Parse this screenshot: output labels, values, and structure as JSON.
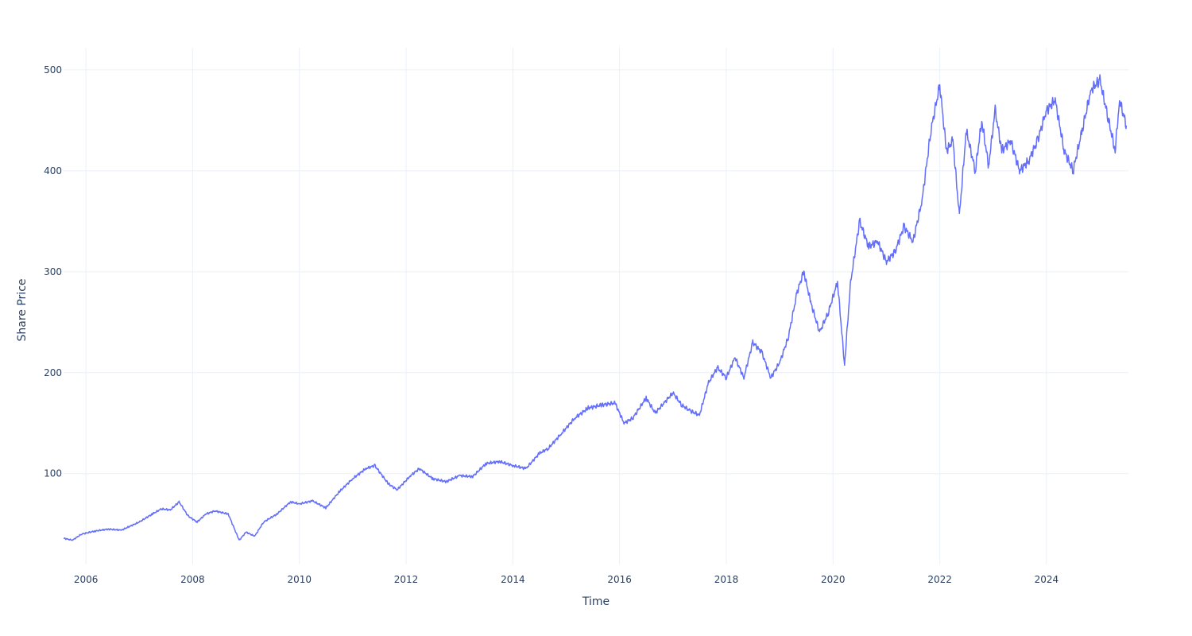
{
  "chart_data": {
    "type": "line",
    "title": "",
    "xlabel": "Time",
    "ylabel": "Share Price",
    "x_range": [
      "2005-08-01",
      "2025-07-15"
    ],
    "ylim": [
      10,
      522
    ],
    "grid": true,
    "line_color": "#636efa",
    "x_ticks": [
      "2006",
      "2008",
      "2010",
      "2012",
      "2014",
      "2016",
      "2018",
      "2020",
      "2022",
      "2024"
    ],
    "y_ticks": [
      100,
      200,
      300,
      400,
      500
    ],
    "series": [
      {
        "x": [
          "2005-08-01",
          "2005-10-01",
          "2005-12-01",
          "2006-03-01",
          "2006-06-01",
          "2006-09-01",
          "2007-01-01",
          "2007-04-01",
          "2007-06-01",
          "2007-08-01",
          "2007-10-01",
          "2007-12-01",
          "2008-02-01",
          "2008-04-01",
          "2008-06-01",
          "2008-09-01",
          "2008-11-15",
          "2009-01-01",
          "2009-03-01",
          "2009-05-01",
          "2009-08-01",
          "2009-11-01",
          "2010-01-01",
          "2010-04-01",
          "2010-07-01",
          "2010-10-01",
          "2011-01-01",
          "2011-04-01",
          "2011-06-01",
          "2011-09-01",
          "2011-11-01",
          "2012-02-01",
          "2012-04-01",
          "2012-07-01",
          "2012-10-01",
          "2013-01-01",
          "2013-04-01",
          "2013-07-01",
          "2013-10-01",
          "2014-01-01",
          "2014-04-01",
          "2014-07-01",
          "2014-09-01",
          "2014-12-01",
          "2015-03-01",
          "2015-06-01",
          "2015-09-01",
          "2015-12-01",
          "2016-02-01",
          "2016-04-01",
          "2016-07-01",
          "2016-09-01",
          "2016-11-01",
          "2017-01-01",
          "2017-03-01",
          "2017-05-01",
          "2017-07-01",
          "2017-09-01",
          "2017-11-01",
          "2018-01-01",
          "2018-03-01",
          "2018-05-01",
          "2018-07-01",
          "2018-09-01",
          "2018-11-01",
          "2019-01-01",
          "2019-03-01",
          "2019-05-01",
          "2019-06-15",
          "2019-08-01",
          "2019-10-01",
          "2019-12-01",
          "2020-02-01",
          "2020-03-20",
          "2020-05-01",
          "2020-07-01",
          "2020-09-01",
          "2020-11-01",
          "2021-01-01",
          "2021-03-01",
          "2021-05-01",
          "2021-07-01",
          "2021-09-01",
          "2021-11-01",
          "2022-01-01",
          "2022-02-15",
          "2022-04-01",
          "2022-05-15",
          "2022-07-01",
          "2022-09-01",
          "2022-10-15",
          "2022-12-01",
          "2023-01-15",
          "2023-03-01",
          "2023-05-01",
          "2023-07-01",
          "2023-09-01",
          "2023-11-01",
          "2024-01-01",
          "2024-03-01",
          "2024-05-01",
          "2024-07-01",
          "2024-09-01",
          "2024-11-01",
          "2025-01-01",
          "2025-03-01",
          "2025-04-15",
          "2025-05-15",
          "2025-07-01"
        ],
        "y": [
          36,
          34,
          40,
          43,
          45,
          44,
          52,
          60,
          65,
          64,
          72,
          58,
          52,
          60,
          63,
          60,
          34,
          42,
          38,
          52,
          60,
          72,
          70,
          73,
          66,
          82,
          95,
          105,
          108,
          90,
          84,
          98,
          105,
          95,
          92,
          98,
          97,
          110,
          112,
          108,
          105,
          120,
          125,
          140,
          155,
          165,
          168,
          170,
          150,
          155,
          175,
          160,
          170,
          180,
          168,
          162,
          158,
          190,
          205,
          195,
          215,
          195,
          230,
          220,
          195,
          210,
          235,
          280,
          300,
          270,
          240,
          260,
          290,
          208,
          290,
          350,
          325,
          330,
          310,
          320,
          345,
          330,
          370,
          440,
          485,
          420,
          430,
          355,
          440,
          400,
          450,
          405,
          460,
          420,
          430,
          400,
          410,
          430,
          460,
          470,
          420,
          400,
          440,
          480,
          490,
          450,
          420,
          470,
          445
        ]
      }
    ]
  }
}
